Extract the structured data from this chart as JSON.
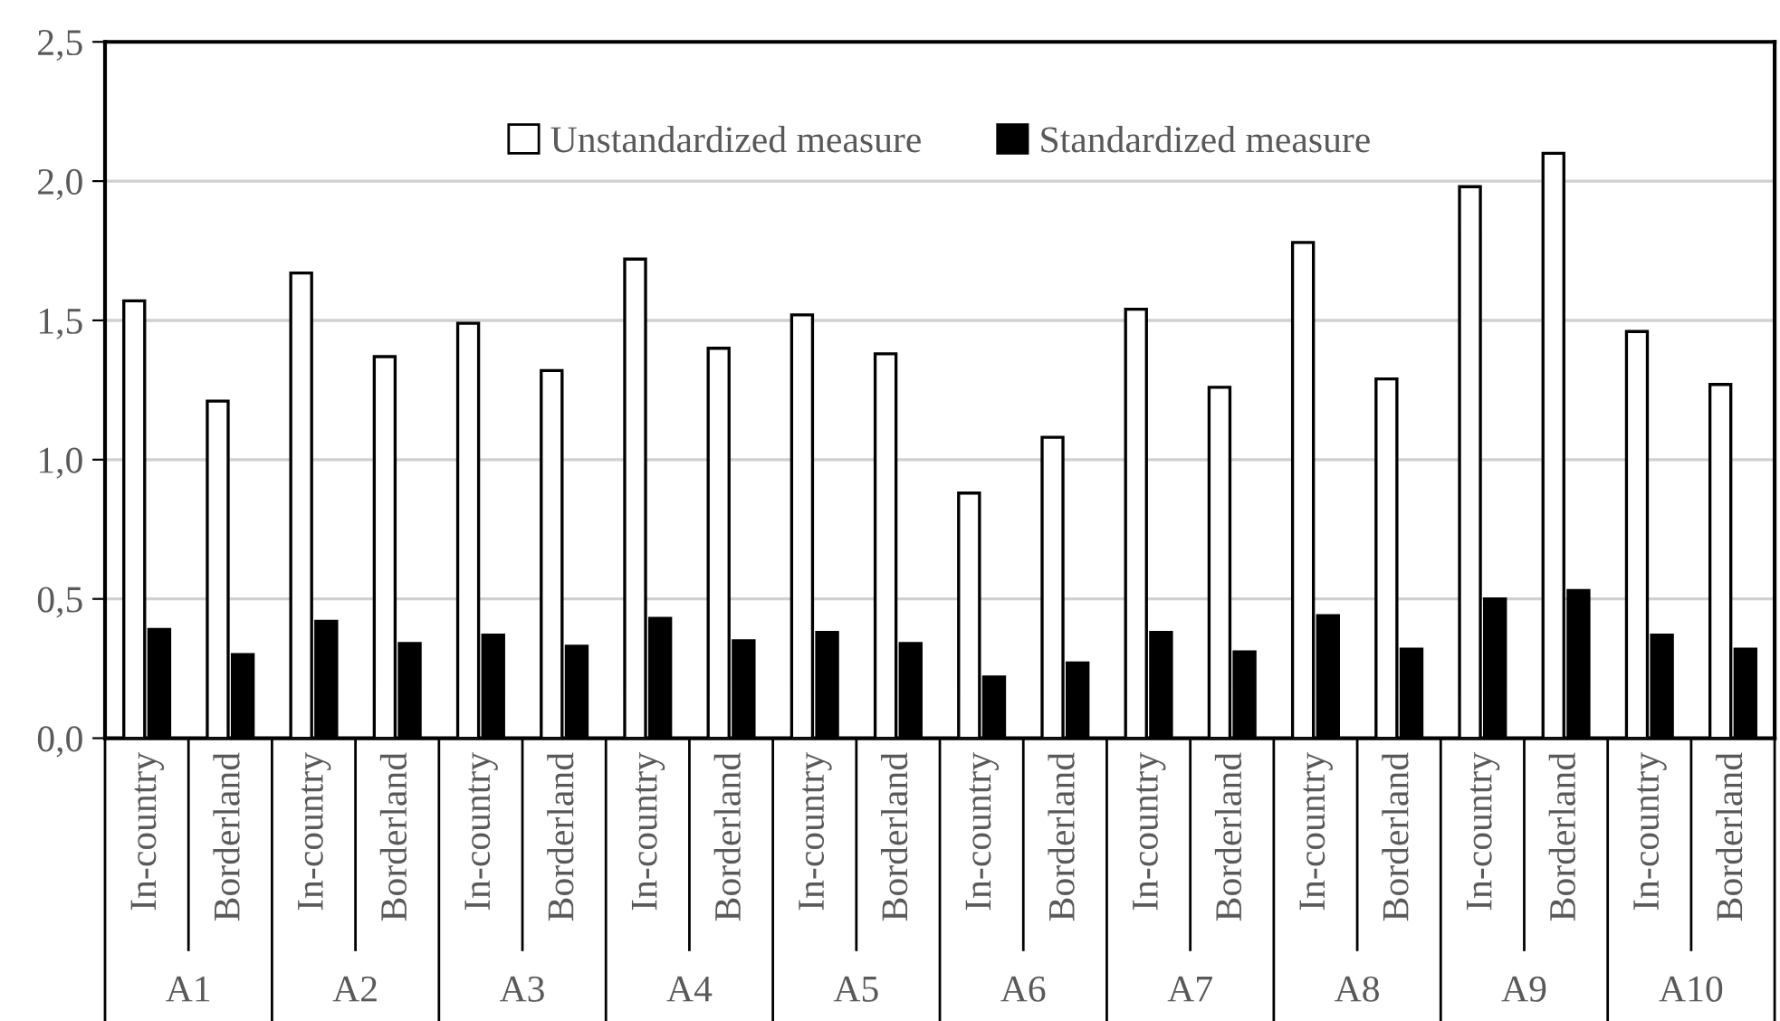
{
  "chart_data": {
    "type": "bar",
    "categories": [
      "In-country",
      "Borderland",
      "In-country",
      "Borderland",
      "In-country",
      "Borderland",
      "In-country",
      "Borderland",
      "In-country",
      "Borderland",
      "In-country",
      "Borderland",
      "In-country",
      "Borderland",
      "In-country",
      "Borderland",
      "In-country",
      "Borderland",
      "In-country",
      "Borderland"
    ],
    "series": [
      {
        "name": "Unstandardized measure",
        "color": "#ffffff",
        "values": [
          1.57,
          1.21,
          1.67,
          1.37,
          1.49,
          1.32,
          1.72,
          1.4,
          1.52,
          1.38,
          0.88,
          1.08,
          1.54,
          1.26,
          1.78,
          1.29,
          1.98,
          2.1,
          1.46,
          1.27
        ]
      },
      {
        "name": "Standardized measure",
        "color": "#000000",
        "values": [
          0.39,
          0.3,
          0.42,
          0.34,
          0.37,
          0.33,
          0.43,
          0.35,
          0.38,
          0.34,
          0.22,
          0.27,
          0.38,
          0.31,
          0.44,
          0.32,
          0.5,
          0.53,
          0.37,
          0.32
        ]
      }
    ],
    "annotations": [
      "A1",
      "A2",
      "A3",
      "A4",
      "A5",
      "A6",
      "A7",
      "A8",
      "A9",
      "A10"
    ],
    "ylim": [
      0,
      2.5
    ],
    "yticks": [
      {
        "value": 0,
        "label": "0,0"
      },
      {
        "value": 0.5,
        "label": "0,5"
      },
      {
        "value": 1,
        "label": "1,0"
      },
      {
        "value": 1.5,
        "label": "1,5"
      },
      {
        "value": 2,
        "label": "2,0"
      },
      {
        "value": 2.5,
        "label": "2,5"
      }
    ],
    "grid": "y",
    "legend": "top"
  }
}
